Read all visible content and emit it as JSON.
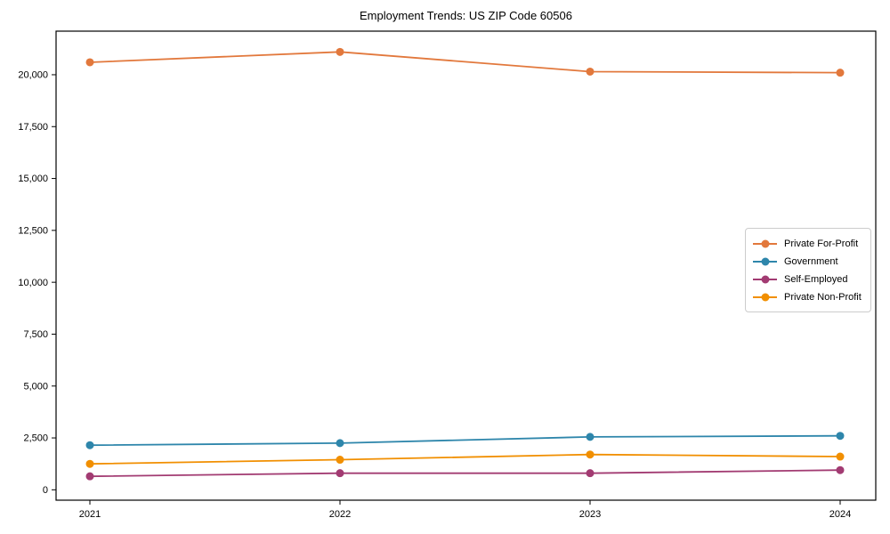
{
  "chart": {
    "title": "Employment Trends: US ZIP Code 60506"
  },
  "chart_data": {
    "type": "line",
    "title": "Employment Trends: US ZIP Code 60506",
    "x": [
      "2021",
      "2022",
      "2023",
      "2024"
    ],
    "series": [
      {
        "name": "Private For-Profit",
        "color": "#E2783C",
        "values": [
          20600,
          21100,
          20150,
          20100
        ]
      },
      {
        "name": "Government",
        "color": "#2E86AB",
        "values": [
          2150,
          2250,
          2550,
          2600
        ]
      },
      {
        "name": "Self-Employed",
        "color": "#A23B72",
        "values": [
          650,
          800,
          800,
          950
        ]
      },
      {
        "name": "Private Non-Profit",
        "color": "#F18F01",
        "values": [
          1250,
          1450,
          1700,
          1600
        ]
      }
    ],
    "xlabel": "",
    "ylabel": "",
    "ylim": [
      -500,
      22100
    ],
    "y_ticks": [
      0,
      2500,
      5000,
      7500,
      10000,
      12500,
      15000,
      17500,
      20000
    ],
    "y_tick_labels": [
      "0",
      "2,500",
      "5,000",
      "7,500",
      "10,000",
      "12,500",
      "15,000",
      "17,500",
      "20,000"
    ],
    "grid": false,
    "legend_position": "center right",
    "axis_color": "#000000"
  }
}
